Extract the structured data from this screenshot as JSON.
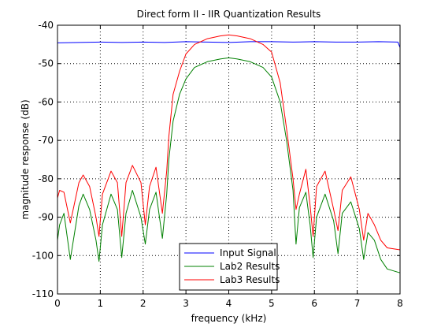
{
  "chart_data": {
    "type": "line",
    "title": "Direct form II - IIR Quantization Results",
    "xlabel": "frequency (kHz)",
    "ylabel": "magnitude response (dB)",
    "xlim": [
      0,
      8
    ],
    "ylim": [
      -110,
      -40
    ],
    "xticks": [
      0,
      1,
      2,
      3,
      4,
      5,
      6,
      7,
      8
    ],
    "xtick_labels": [
      "0",
      "1",
      "2",
      "3",
      "4",
      "5",
      "6",
      "7",
      "8"
    ],
    "yticks": [
      -40,
      -50,
      -60,
      -70,
      -80,
      -90,
      -100,
      -110
    ],
    "ytick_labels": [
      "-40",
      "-50",
      "-60",
      "-70",
      "-80",
      "-90",
      "-100",
      "-110"
    ],
    "grid": true,
    "legend_position": "bottom-center",
    "series": [
      {
        "name": "Input Signal",
        "color": "#0000ff",
        "x": [
          0,
          0.5,
          1,
          1.5,
          2,
          2.5,
          3,
          3.5,
          4,
          4.5,
          5,
          5.5,
          6,
          6.5,
          7,
          7.5,
          7.95,
          8
        ],
        "y": [
          -44.6,
          -44.5,
          -44.4,
          -44.5,
          -44.4,
          -44.5,
          -44.3,
          -44.4,
          -44.5,
          -44.3,
          -44.3,
          -44.4,
          -44.3,
          -44.4,
          -44.4,
          -44.3,
          -44.4,
          -45.8
        ]
      },
      {
        "name": "Lab2 Results",
        "color": "#008000",
        "x": [
          0,
          0.05,
          0.15,
          0.3,
          0.5,
          0.6,
          0.75,
          0.9,
          0.97,
          1.05,
          1.25,
          1.4,
          1.5,
          1.6,
          1.75,
          1.95,
          2.05,
          2.15,
          2.3,
          2.45,
          2.55,
          2.6,
          2.7,
          2.85,
          3.0,
          3.2,
          3.5,
          3.8,
          4.0,
          4.2,
          4.5,
          4.8,
          5.0,
          5.2,
          5.35,
          5.5,
          5.57,
          5.65,
          5.8,
          5.9,
          5.97,
          6.05,
          6.25,
          6.45,
          6.55,
          6.65,
          6.85,
          7.05,
          7.15,
          7.25,
          7.4,
          7.55,
          7.7,
          8.0
        ],
        "y": [
          -96,
          -92,
          -89,
          -101,
          -87,
          -84,
          -88,
          -96,
          -101.5,
          -92,
          -84,
          -88,
          -100.5,
          -89,
          -83,
          -90,
          -97,
          -88,
          -83.5,
          -95.5,
          -84,
          -75,
          -65,
          -58,
          -54,
          -51,
          -49.5,
          -48.8,
          -48.5,
          -48.8,
          -49.5,
          -51,
          -53.5,
          -60,
          -70,
          -83,
          -97,
          -87.5,
          -83.5,
          -92,
          -100.5,
          -90,
          -84,
          -91,
          -99.5,
          -89,
          -86,
          -93,
          -101,
          -94,
          -96,
          -101,
          -103.5,
          -104.5
        ]
      },
      {
        "name": "Lab3 Results",
        "color": "#ff0000",
        "x": [
          0,
          0.05,
          0.15,
          0.3,
          0.5,
          0.6,
          0.75,
          0.9,
          0.97,
          1.05,
          1.25,
          1.4,
          1.5,
          1.6,
          1.75,
          1.95,
          2.05,
          2.15,
          2.3,
          2.45,
          2.55,
          2.6,
          2.7,
          2.85,
          3.0,
          3.2,
          3.5,
          3.8,
          4.0,
          4.2,
          4.5,
          4.8,
          5.0,
          5.2,
          5.35,
          5.5,
          5.57,
          5.65,
          5.8,
          5.9,
          5.97,
          6.05,
          6.25,
          6.45,
          6.55,
          6.65,
          6.85,
          7.05,
          7.15,
          7.25,
          7.4,
          7.55,
          7.7,
          8.0
        ],
        "y": [
          -85,
          -83,
          -83.5,
          -91.5,
          -81,
          -79,
          -82,
          -90,
          -95,
          -84,
          -78,
          -81,
          -95,
          -81,
          -76.5,
          -81,
          -92,
          -82,
          -77,
          -89,
          -78,
          -69,
          -58,
          -52,
          -47.5,
          -45,
          -43.5,
          -42.8,
          -42.5,
          -42.8,
          -43.5,
          -45,
          -47,
          -55,
          -67,
          -80,
          -88,
          -84,
          -77.5,
          -87,
          -95,
          -82,
          -78,
          -88,
          -93.5,
          -83,
          -79.5,
          -88,
          -96,
          -89,
          -92,
          -96,
          -98,
          -98.5
        ]
      }
    ]
  }
}
